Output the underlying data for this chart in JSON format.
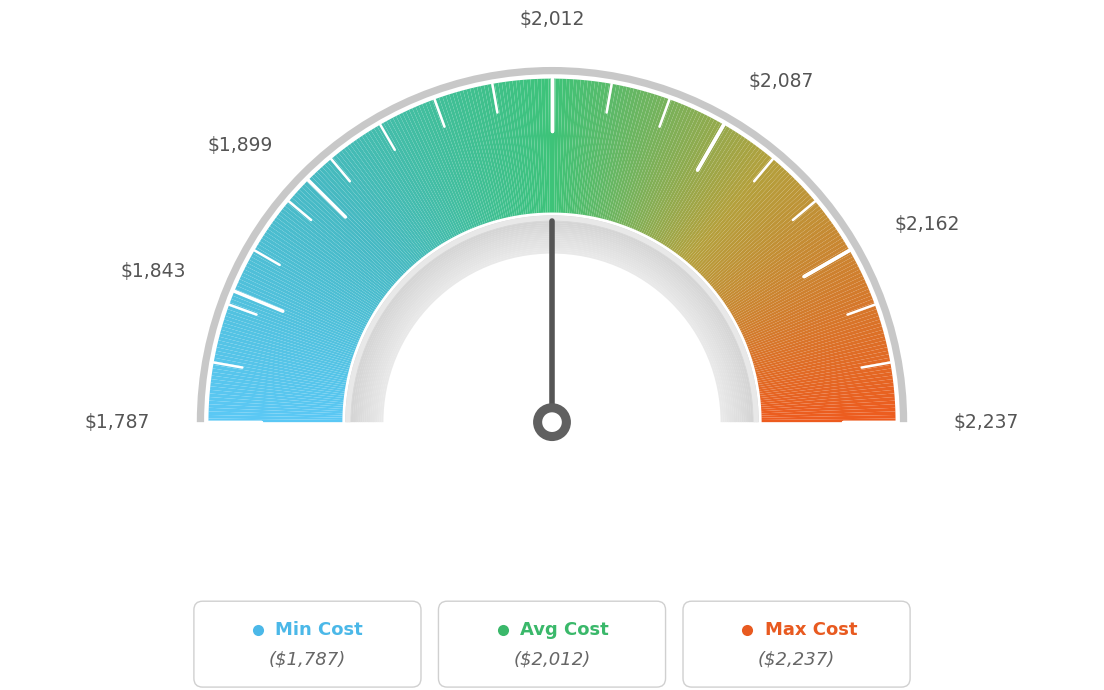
{
  "min_val": 1787,
  "max_val": 2237,
  "avg_val": 2012,
  "background_color": "#ffffff",
  "tick_values": [
    1787,
    1843,
    1899,
    2012,
    2087,
    2162,
    2237
  ],
  "tick_labels_map": {
    "1787": "$1,787",
    "1843": "$1,843",
    "1899": "$1,899",
    "2012": "$2,012",
    "2087": "$2,087",
    "2162": "$2,162",
    "2237": "$2,237"
  },
  "color_stops": [
    [
      0.0,
      [
        91,
        200,
        245
      ]
    ],
    [
      0.25,
      [
        70,
        185,
        195
      ]
    ],
    [
      0.5,
      [
        61,
        195,
        120
      ]
    ],
    [
      0.72,
      [
        180,
        160,
        60
      ]
    ],
    [
      1.0,
      [
        238,
        90,
        30
      ]
    ]
  ],
  "legend": [
    {
      "label": "Min Cost",
      "value": "($1,787)",
      "dot_color": "#4bb8e8",
      "text_color": "#4bb8e8"
    },
    {
      "label": "Avg Cost",
      "value": "($2,012)",
      "dot_color": "#3ab86a",
      "text_color": "#3ab86a"
    },
    {
      "label": "Max Cost",
      "value": "($2,237)",
      "dot_color": "#e85a20",
      "text_color": "#e85a20"
    }
  ]
}
